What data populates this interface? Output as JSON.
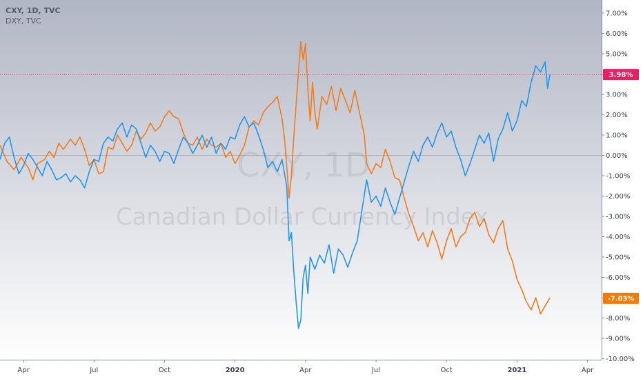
{
  "legend": {
    "line1": "CXY, 1D, TVC",
    "line2": "DXY, TVC"
  },
  "watermark": {
    "symbol": "CXY, 1D",
    "name": "Canadian Dollar Currency Index"
  },
  "chart_data": {
    "type": "line",
    "y_axis": {
      "unit": "%",
      "ticks": [
        "7.00%",
        "6.00%",
        "5.00%",
        "4.00%",
        "3.00%",
        "2.00%",
        "1.00%",
        "0.00%",
        "-1.00%",
        "-2.00%",
        "-3.00%",
        "-4.00%",
        "-5.00%",
        "-6.00%",
        "-7.00%",
        "-8.00%",
        "-9.00%",
        "-10.00%"
      ],
      "ylim": [
        -10,
        7.4
      ],
      "scale": "linear",
      "position": "right"
    },
    "x_axis": {
      "ticks": [
        {
          "label": "Apr",
          "t": 0.7,
          "bold": false
        },
        {
          "label": "Jul",
          "t": 3.7,
          "bold": false
        },
        {
          "label": "Oct",
          "t": 6.7,
          "bold": false
        },
        {
          "label": "2020",
          "t": 9.7,
          "bold": true
        },
        {
          "label": "Apr",
          "t": 12.7,
          "bold": false
        },
        {
          "label": "Jul",
          "t": 15.7,
          "bold": false
        },
        {
          "label": "Oct",
          "t": 18.7,
          "bold": false
        },
        {
          "label": "2021",
          "t": 21.7,
          "bold": true
        },
        {
          "label": "Apr",
          "t": 24.7,
          "bold": false
        }
      ],
      "range": [
        -0.3,
        25.3
      ]
    },
    "zero_line": 0,
    "series": [
      {
        "color": "#f57c19",
        "last_value_label": "-7.03%",
        "last_value": -7.03,
        "points": [
          [
            -0.3,
            0.5
          ],
          [
            0.0,
            -0.3
          ],
          [
            0.3,
            -0.7
          ],
          [
            0.6,
            -0.1
          ],
          [
            0.9,
            -0.6
          ],
          [
            1.1,
            -1.2
          ],
          [
            1.3,
            -0.4
          ],
          [
            1.6,
            -0.2
          ],
          [
            1.8,
            0.2
          ],
          [
            2.0,
            -0.1
          ],
          [
            2.2,
            0.6
          ],
          [
            2.4,
            0.3
          ],
          [
            2.7,
            0.8
          ],
          [
            2.9,
            0.5
          ],
          [
            3.1,
            0.9
          ],
          [
            3.3,
            0.3
          ],
          [
            3.5,
            -0.5
          ],
          [
            3.7,
            -0.2
          ],
          [
            3.9,
            -0.9
          ],
          [
            4.1,
            -0.8
          ],
          [
            4.3,
            0.4
          ],
          [
            4.5,
            0.3
          ],
          [
            4.7,
            1.0
          ],
          [
            4.9,
            0.6
          ],
          [
            5.1,
            0.2
          ],
          [
            5.3,
            0.5
          ],
          [
            5.5,
            1.2
          ],
          [
            5.7,
            0.8
          ],
          [
            5.9,
            1.1
          ],
          [
            6.1,
            1.6
          ],
          [
            6.3,
            1.2
          ],
          [
            6.5,
            1.4
          ],
          [
            6.7,
            1.9
          ],
          [
            6.9,
            2.2
          ],
          [
            7.1,
            1.9
          ],
          [
            7.3,
            1.8
          ],
          [
            7.5,
            1.1
          ],
          [
            7.7,
            0.6
          ],
          [
            7.9,
            0.5
          ],
          [
            8.1,
            0.9
          ],
          [
            8.3,
            0.3
          ],
          [
            8.5,
            0.8
          ],
          [
            8.7,
            0.5
          ],
          [
            8.9,
            0.4
          ],
          [
            9.1,
            0.6
          ],
          [
            9.3,
            -0.1
          ],
          [
            9.5,
            0.2
          ],
          [
            9.7,
            -0.4
          ],
          [
            9.9,
            0.0
          ],
          [
            10.1,
            0.5
          ],
          [
            10.3,
            1.4
          ],
          [
            10.5,
            1.7
          ],
          [
            10.7,
            1.5
          ],
          [
            10.9,
            2.1
          ],
          [
            11.1,
            2.4
          ],
          [
            11.3,
            2.6
          ],
          [
            11.5,
            2.9
          ],
          [
            11.7,
            1.8
          ],
          [
            11.8,
            0.9
          ],
          [
            11.9,
            -0.5
          ],
          [
            12.0,
            -2.1
          ],
          [
            12.1,
            -1.0
          ],
          [
            12.2,
            0.9
          ],
          [
            12.3,
            2.5
          ],
          [
            12.4,
            4.1
          ],
          [
            12.5,
            5.6
          ],
          [
            12.6,
            4.7
          ],
          [
            12.7,
            5.5
          ],
          [
            12.8,
            3.3
          ],
          [
            12.9,
            1.7
          ],
          [
            13.0,
            3.6
          ],
          [
            13.1,
            2.1
          ],
          [
            13.2,
            1.3
          ],
          [
            13.4,
            2.9
          ],
          [
            13.6,
            2.5
          ],
          [
            13.8,
            3.4
          ],
          [
            14.0,
            2.2
          ],
          [
            14.2,
            3.3
          ],
          [
            14.4,
            2.7
          ],
          [
            14.6,
            2.1
          ],
          [
            14.8,
            3.2
          ],
          [
            15.0,
            2.1
          ],
          [
            15.2,
            1.0
          ],
          [
            15.3,
            -0.4
          ],
          [
            15.5,
            -0.9
          ],
          [
            15.7,
            -0.4
          ],
          [
            15.9,
            -0.6
          ],
          [
            16.1,
            0.3
          ],
          [
            16.3,
            -0.3
          ],
          [
            16.5,
            -1.1
          ],
          [
            16.7,
            -1.2
          ],
          [
            16.9,
            -2.1
          ],
          [
            17.1,
            -2.9
          ],
          [
            17.3,
            -3.5
          ],
          [
            17.5,
            -4.2
          ],
          [
            17.7,
            -3.8
          ],
          [
            17.9,
            -4.5
          ],
          [
            18.1,
            -3.7
          ],
          [
            18.3,
            -4.3
          ],
          [
            18.5,
            -5.1
          ],
          [
            18.7,
            -4.2
          ],
          [
            18.9,
            -3.6
          ],
          [
            19.1,
            -4.5
          ],
          [
            19.3,
            -4.0
          ],
          [
            19.5,
            -3.8
          ],
          [
            19.7,
            -3.1
          ],
          [
            19.9,
            -2.8
          ],
          [
            20.1,
            -3.5
          ],
          [
            20.3,
            -3.1
          ],
          [
            20.5,
            -3.9
          ],
          [
            20.7,
            -4.3
          ],
          [
            20.9,
            -3.6
          ],
          [
            21.1,
            -3.2
          ],
          [
            21.3,
            -4.6
          ],
          [
            21.5,
            -5.2
          ],
          [
            21.7,
            -6.1
          ],
          [
            21.9,
            -6.6
          ],
          [
            22.1,
            -7.2
          ],
          [
            22.3,
            -7.6
          ],
          [
            22.5,
            -7.0
          ],
          [
            22.7,
            -7.8
          ],
          [
            22.9,
            -7.4
          ],
          [
            23.1,
            -7.0
          ]
        ]
      },
      {
        "color": "#2196f3",
        "last_value_label": "3.98%",
        "last_value": 3.98,
        "points": [
          [
            -0.3,
            -0.2
          ],
          [
            -0.1,
            0.6
          ],
          [
            0.1,
            0.9
          ],
          [
            0.3,
            -0.1
          ],
          [
            0.5,
            -0.9
          ],
          [
            0.7,
            -0.5
          ],
          [
            0.9,
            0.1
          ],
          [
            1.1,
            -0.2
          ],
          [
            1.3,
            -0.6
          ],
          [
            1.5,
            -1.0
          ],
          [
            1.7,
            -0.3
          ],
          [
            1.9,
            -0.7
          ],
          [
            2.1,
            -1.2
          ],
          [
            2.3,
            -1.1
          ],
          [
            2.5,
            -0.9
          ],
          [
            2.7,
            -1.3
          ],
          [
            2.9,
            -1.0
          ],
          [
            3.1,
            -1.2
          ],
          [
            3.3,
            -1.6
          ],
          [
            3.5,
            -0.8
          ],
          [
            3.7,
            -0.2
          ],
          [
            3.9,
            -0.3
          ],
          [
            4.1,
            0.6
          ],
          [
            4.3,
            0.9
          ],
          [
            4.5,
            0.7
          ],
          [
            4.7,
            1.3
          ],
          [
            4.9,
            1.6
          ],
          [
            5.1,
            0.9
          ],
          [
            5.3,
            1.5
          ],
          [
            5.5,
            1.3
          ],
          [
            5.7,
            0.6
          ],
          [
            5.9,
            -0.1
          ],
          [
            6.1,
            0.5
          ],
          [
            6.3,
            0.2
          ],
          [
            6.5,
            -0.3
          ],
          [
            6.7,
            0.2
          ],
          [
            6.9,
            0.1
          ],
          [
            7.1,
            -0.4
          ],
          [
            7.3,
            0.3
          ],
          [
            7.5,
            0.9
          ],
          [
            7.7,
            0.6
          ],
          [
            7.9,
            0.1
          ],
          [
            8.1,
            0.5
          ],
          [
            8.3,
            1.0
          ],
          [
            8.5,
            0.4
          ],
          [
            8.7,
            0.9
          ],
          [
            8.9,
            0.1
          ],
          [
            9.1,
            0.6
          ],
          [
            9.3,
            0.3
          ],
          [
            9.5,
            0.9
          ],
          [
            9.7,
            0.8
          ],
          [
            9.9,
            1.5
          ],
          [
            10.1,
            1.9
          ],
          [
            10.3,
            1.4
          ],
          [
            10.5,
            1.6
          ],
          [
            10.7,
            1.0
          ],
          [
            10.9,
            0.3
          ],
          [
            11.1,
            -0.6
          ],
          [
            11.3,
            -0.3
          ],
          [
            11.5,
            -0.8
          ],
          [
            11.7,
            -0.2
          ],
          [
            11.9,
            -1.5
          ],
          [
            12.0,
            -4.2
          ],
          [
            12.1,
            -3.8
          ],
          [
            12.2,
            -5.7
          ],
          [
            12.3,
            -7.2
          ],
          [
            12.4,
            -8.5
          ],
          [
            12.5,
            -8.1
          ],
          [
            12.6,
            -6.0
          ],
          [
            12.7,
            -5.4
          ],
          [
            12.8,
            -6.8
          ],
          [
            12.9,
            -5.0
          ],
          [
            13.1,
            -5.6
          ],
          [
            13.3,
            -4.9
          ],
          [
            13.5,
            -5.3
          ],
          [
            13.7,
            -4.4
          ],
          [
            13.9,
            -5.8
          ],
          [
            14.1,
            -4.6
          ],
          [
            14.3,
            -4.9
          ],
          [
            14.5,
            -5.5
          ],
          [
            14.7,
            -4.8
          ],
          [
            14.9,
            -4.2
          ],
          [
            15.1,
            -2.7
          ],
          [
            15.3,
            -1.2
          ],
          [
            15.5,
            -2.3
          ],
          [
            15.7,
            -2.0
          ],
          [
            15.9,
            -2.5
          ],
          [
            16.1,
            -1.6
          ],
          [
            16.3,
            -2.3
          ],
          [
            16.5,
            -2.9
          ],
          [
            16.7,
            -2.1
          ],
          [
            16.9,
            -1.3
          ],
          [
            17.1,
            -0.5
          ],
          [
            17.3,
            0.2
          ],
          [
            17.5,
            -0.3
          ],
          [
            17.7,
            0.5
          ],
          [
            17.9,
            0.9
          ],
          [
            18.1,
            0.4
          ],
          [
            18.3,
            1.1
          ],
          [
            18.5,
            1.6
          ],
          [
            18.7,
            0.9
          ],
          [
            18.9,
            1.2
          ],
          [
            19.1,
            0.4
          ],
          [
            19.3,
            -0.2
          ],
          [
            19.5,
            -1.0
          ],
          [
            19.7,
            -0.4
          ],
          [
            19.9,
            0.3
          ],
          [
            20.1,
            1.0
          ],
          [
            20.3,
            0.6
          ],
          [
            20.5,
            1.1
          ],
          [
            20.7,
            -0.3
          ],
          [
            20.9,
            0.8
          ],
          [
            21.1,
            1.3
          ],
          [
            21.3,
            2.1
          ],
          [
            21.5,
            1.2
          ],
          [
            21.7,
            1.7
          ],
          [
            21.9,
            2.7
          ],
          [
            22.1,
            2.4
          ],
          [
            22.3,
            3.6
          ],
          [
            22.5,
            4.4
          ],
          [
            22.7,
            4.1
          ],
          [
            22.9,
            4.6
          ],
          [
            23.0,
            3.3
          ],
          [
            23.1,
            3.98
          ]
        ]
      }
    ],
    "grid": false,
    "legend_position": "top-left"
  },
  "colors": {
    "bg_top": "#b1b6c4",
    "bg_bottom": "#ffffff",
    "axis_bg": "#ffffff",
    "blue_badge": "#e91e63",
    "orange_badge": "#f57c00",
    "price_line": "#e91e63"
  }
}
